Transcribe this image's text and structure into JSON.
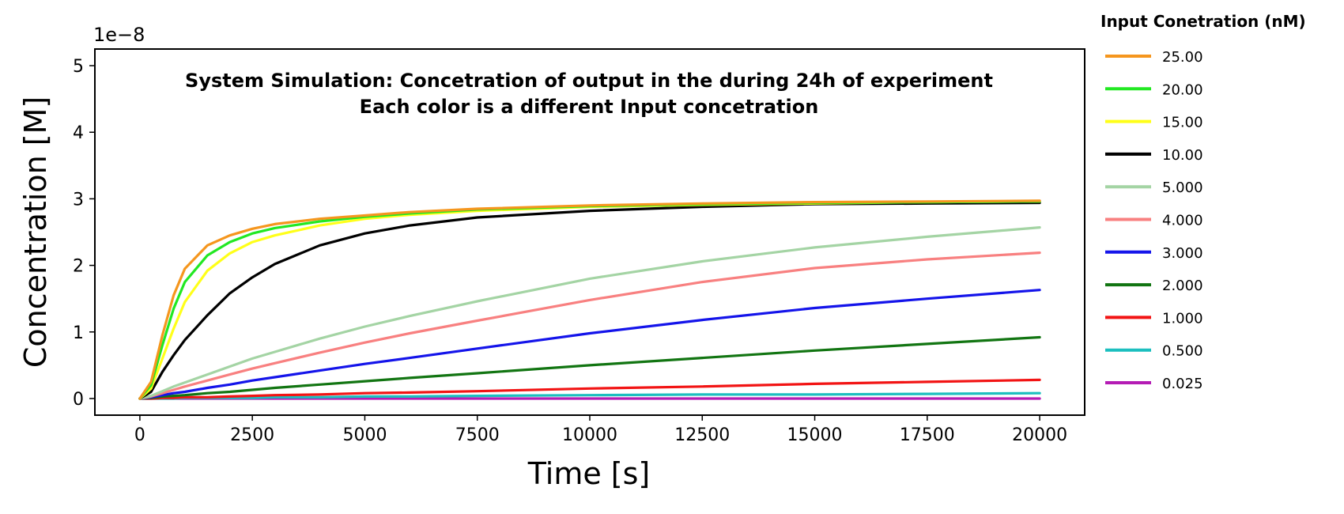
{
  "chart_data": {
    "type": "line",
    "title": "System Simulation: Concetration of output in the during 24h of experiment",
    "subtitle": "Each color is a different Input concetration",
    "xlabel": "Time [s]",
    "ylabel": "Concentration [M]",
    "y_multiplier": "1e−8",
    "xlim": [
      -1000,
      21000
    ],
    "ylim": [
      -0.25,
      5.25
    ],
    "x_ticks": [
      0,
      2500,
      5000,
      7500,
      10000,
      12500,
      15000,
      17500,
      20000
    ],
    "y_ticks": [
      0,
      1,
      2,
      3,
      4,
      5
    ],
    "grid": false,
    "legend_title": "Input Conetration (nM)",
    "legend_position": "outside-right",
    "x": [
      0,
      250,
      500,
      750,
      1000,
      1500,
      2000,
      2500,
      3000,
      4000,
      5000,
      6000,
      7500,
      10000,
      12500,
      15000,
      17500,
      20000
    ],
    "series": [
      {
        "name": "25.00",
        "color": "#f5961e",
        "values": [
          0.0,
          0.25,
          0.95,
          1.55,
          1.95,
          2.3,
          2.45,
          2.55,
          2.62,
          2.7,
          2.75,
          2.8,
          2.85,
          2.9,
          2.93,
          2.95,
          2.96,
          2.97
        ]
      },
      {
        "name": "20.00",
        "color": "#22e822",
        "values": [
          0.0,
          0.2,
          0.8,
          1.35,
          1.75,
          2.15,
          2.35,
          2.48,
          2.56,
          2.66,
          2.73,
          2.78,
          2.84,
          2.89,
          2.92,
          2.94,
          2.95,
          2.96
        ]
      },
      {
        "name": "15.00",
        "color": "#ffff19",
        "values": [
          0.0,
          0.15,
          0.6,
          1.05,
          1.45,
          1.92,
          2.18,
          2.35,
          2.45,
          2.6,
          2.7,
          2.76,
          2.82,
          2.88,
          2.91,
          2.93,
          2.95,
          2.96
        ]
      },
      {
        "name": "10.00",
        "color": "#000000",
        "values": [
          0.0,
          0.1,
          0.4,
          0.65,
          0.88,
          1.25,
          1.58,
          1.82,
          2.02,
          2.3,
          2.48,
          2.6,
          2.72,
          2.82,
          2.88,
          2.92,
          2.93,
          2.94
        ]
      },
      {
        "name": "5.000",
        "color": "#a4d4a4",
        "values": [
          0.0,
          0.04,
          0.11,
          0.18,
          0.24,
          0.36,
          0.48,
          0.6,
          0.7,
          0.9,
          1.08,
          1.24,
          1.46,
          1.8,
          2.06,
          2.27,
          2.43,
          2.57
        ]
      },
      {
        "name": "4.000",
        "color": "#f88080",
        "values": [
          0.0,
          0.03,
          0.08,
          0.13,
          0.18,
          0.27,
          0.36,
          0.45,
          0.53,
          0.69,
          0.84,
          0.98,
          1.17,
          1.48,
          1.75,
          1.96,
          2.09,
          2.19
        ]
      },
      {
        "name": "3.000",
        "color": "#1414ea",
        "values": [
          0.0,
          0.02,
          0.05,
          0.08,
          0.1,
          0.16,
          0.21,
          0.27,
          0.32,
          0.42,
          0.52,
          0.61,
          0.75,
          0.98,
          1.18,
          1.36,
          1.5,
          1.63
        ]
      },
      {
        "name": "2.000",
        "color": "#127512",
        "values": [
          0.0,
          0.01,
          0.03,
          0.04,
          0.05,
          0.08,
          0.1,
          0.13,
          0.16,
          0.21,
          0.26,
          0.31,
          0.38,
          0.5,
          0.61,
          0.72,
          0.82,
          0.92
        ]
      },
      {
        "name": "1.000",
        "color": "#f21414",
        "values": [
          0.0,
          0.0,
          0.01,
          0.01,
          0.02,
          0.02,
          0.03,
          0.04,
          0.05,
          0.06,
          0.08,
          0.09,
          0.11,
          0.15,
          0.18,
          0.22,
          0.25,
          0.28
        ]
      },
      {
        "name": "0.500",
        "color": "#1cbfbf",
        "values": [
          0.0,
          0.0,
          0.0,
          0.0,
          0.01,
          0.01,
          0.01,
          0.01,
          0.02,
          0.02,
          0.03,
          0.03,
          0.04,
          0.05,
          0.06,
          0.06,
          0.07,
          0.08
        ]
      },
      {
        "name": "0.025",
        "color": "#b41cb4",
        "values": [
          0.0,
          0.0,
          0.0,
          0.0,
          0.0,
          0.0,
          0.0,
          0.0,
          0.0,
          0.0,
          0.0,
          0.0,
          0.0,
          0.0,
          0.0,
          0.0,
          0.0,
          0.0
        ]
      }
    ]
  }
}
